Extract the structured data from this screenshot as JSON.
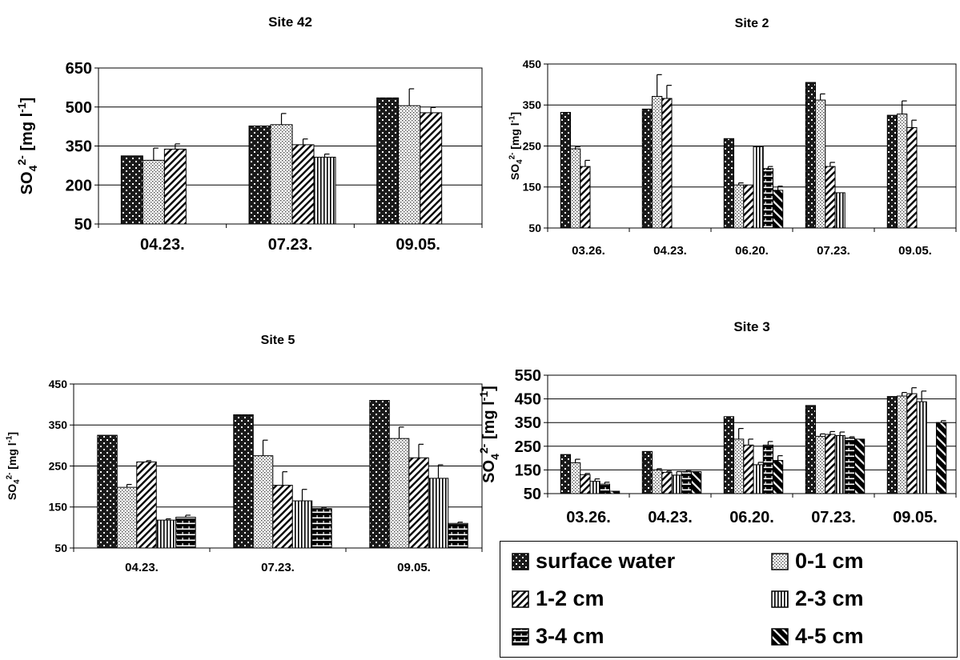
{
  "chart_data": [
    {
      "type": "bar",
      "title": "Site 42",
      "ylabel": "SO4 2- [mg l-1]",
      "ylim": [
        50,
        650
      ],
      "yticks": [
        50,
        200,
        350,
        500,
        650
      ],
      "categories": [
        "04.23.",
        "07.23.",
        "09.05."
      ],
      "series": [
        {
          "name": "surface water",
          "values": [
            312,
            427,
            535
          ],
          "errors": [
            null,
            null,
            null
          ]
        },
        {
          "name": "0-1 cm",
          "values": [
            295,
            432,
            505
          ],
          "errors": [
            47,
            43,
            65
          ]
        },
        {
          "name": "1-2 cm",
          "values": [
            338,
            355,
            478
          ],
          "errors": [
            20,
            22,
            20
          ]
        },
        {
          "name": "2-3 cm",
          "values": [
            null,
            307,
            null
          ],
          "errors": [
            null,
            12,
            null
          ]
        }
      ]
    },
    {
      "type": "bar",
      "title": "Site 2",
      "ylabel": "SO4 2- [mg l-1]",
      "ylim": [
        50,
        450
      ],
      "yticks": [
        50,
        150,
        250,
        350,
        450
      ],
      "categories": [
        "03.26.",
        "04.23.",
        "06.20.",
        "07.23.",
        "09.05."
      ],
      "series": [
        {
          "name": "surface water",
          "values": [
            332,
            340,
            268,
            405,
            325
          ],
          "errors": [
            null,
            null,
            null,
            null,
            null
          ]
        },
        {
          "name": "0-1 cm",
          "values": [
            243,
            371,
            155,
            362,
            328
          ],
          "errors": [
            5,
            53,
            5,
            15,
            32
          ]
        },
        {
          "name": "1-2 cm",
          "values": [
            200,
            366,
            155,
            200,
            295
          ],
          "errors": [
            15,
            32,
            null,
            10,
            18
          ]
        },
        {
          "name": "2-3 cm",
          "values": [
            null,
            null,
            248,
            136,
            null
          ],
          "errors": [
            null,
            null,
            null,
            null,
            null
          ]
        },
        {
          "name": "3-4 cm",
          "values": [
            null,
            null,
            195,
            null,
            null
          ],
          "errors": [
            null,
            null,
            5,
            null,
            null
          ]
        },
        {
          "name": "4-5 cm",
          "values": [
            null,
            null,
            142,
            null,
            null
          ],
          "errors": [
            null,
            null,
            10,
            null,
            null
          ]
        }
      ]
    },
    {
      "type": "bar",
      "title": "Site 5",
      "ylabel": "SO4 2- [mg l-1]",
      "ylim": [
        50,
        450
      ],
      "yticks": [
        50,
        150,
        250,
        350,
        450
      ],
      "categories": [
        "04.23.",
        "07.23.",
        "09.05."
      ],
      "series": [
        {
          "name": "surface water",
          "values": [
            325,
            375,
            410
          ],
          "errors": [
            null,
            null,
            null
          ]
        },
        {
          "name": "0-1 cm",
          "values": [
            198,
            275,
            317
          ],
          "errors": [
            7,
            38,
            28
          ]
        },
        {
          "name": "1-2 cm",
          "values": [
            260,
            203,
            270
          ],
          "errors": [
            3,
            33,
            33
          ]
        },
        {
          "name": "2-3 cm",
          "values": [
            118,
            165,
            220
          ],
          "errors": [
            3,
            28,
            33
          ]
        },
        {
          "name": "3-4 cm",
          "values": [
            125,
            146,
            110
          ],
          "errors": [
            5,
            3,
            3
          ]
        }
      ]
    },
    {
      "type": "bar",
      "title": "Site 3",
      "ylabel": "SO4 2- [mg l-1]",
      "ylim": [
        50,
        550
      ],
      "yticks": [
        50,
        150,
        250,
        350,
        450,
        550
      ],
      "categories": [
        "03.26.",
        "04.23.",
        "06.20.",
        "07.23.",
        "09.05."
      ],
      "series": [
        {
          "name": "surface water",
          "values": [
            215,
            228,
            375,
            422,
            460
          ],
          "errors": [
            null,
            null,
            null,
            null,
            null
          ]
        },
        {
          "name": "0-1 cm",
          "values": [
            180,
            150,
            280,
            292,
            462
          ],
          "errors": [
            15,
            5,
            45,
            10,
            15
          ]
        },
        {
          "name": "1-2 cm",
          "values": [
            130,
            140,
            255,
            300,
            472
          ],
          "errors": [
            5,
            5,
            25,
            12,
            25
          ]
        },
        {
          "name": "2-3 cm",
          "values": [
            102,
            128,
            172,
            295,
            438
          ],
          "errors": [
            10,
            15,
            10,
            15,
            45
          ]
        },
        {
          "name": "3-4 cm",
          "values": [
            90,
            143,
            255,
            285,
            null
          ],
          "errors": [
            8,
            5,
            15,
            5,
            null
          ]
        },
        {
          "name": "4-5 cm",
          "values": [
            60,
            143,
            190,
            280,
            350
          ],
          "errors": [
            null,
            null,
            20,
            null,
            8
          ]
        }
      ]
    }
  ],
  "legend": {
    "items": [
      {
        "label": "surface water",
        "pattern": "surface"
      },
      {
        "label": "0-1 cm",
        "pattern": "p01"
      },
      {
        "label": "1-2 cm",
        "pattern": "p12"
      },
      {
        "label": "2-3 cm",
        "pattern": "p23"
      },
      {
        "label": "3-4 cm",
        "pattern": "p34"
      },
      {
        "label": "4-5 cm",
        "pattern": "p45"
      }
    ]
  },
  "colors": {
    "bar_outline": "#000000",
    "background": "#ffffff"
  }
}
